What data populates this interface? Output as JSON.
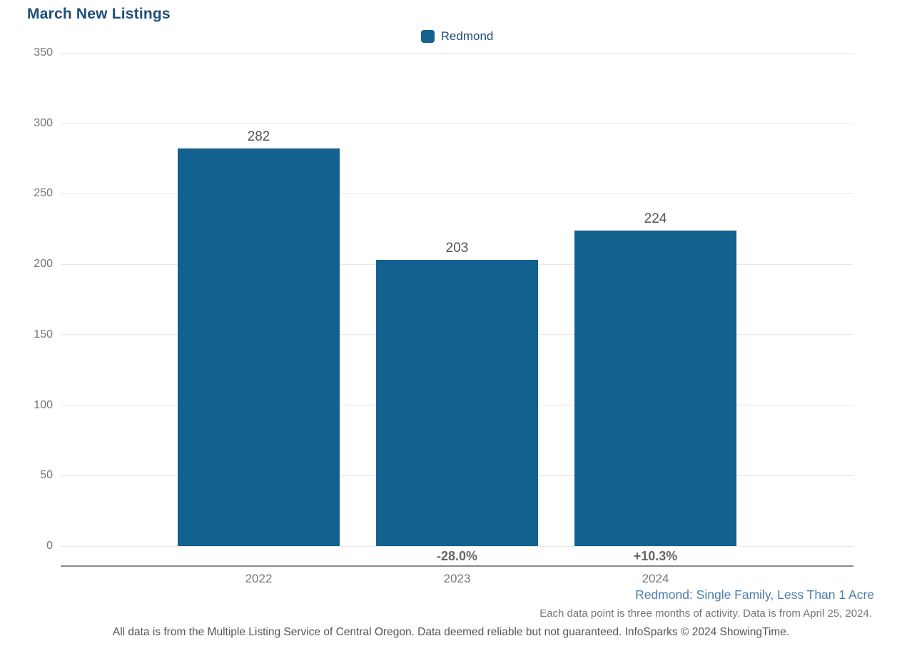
{
  "title": "March New Listings",
  "legend": {
    "label": "Redmond"
  },
  "chart_data": {
    "type": "bar",
    "title": "March New Listings",
    "categories": [
      "2022",
      "2023",
      "2024"
    ],
    "series": [
      {
        "name": "Redmond",
        "values": [
          282,
          203,
          224
        ]
      }
    ],
    "data_labels": [
      "282",
      "203",
      "224"
    ],
    "pct_change_labels": [
      "",
      "-28.0%",
      "+10.3%"
    ],
    "xlabel": "",
    "ylabel": "",
    "ylim": [
      0,
      350
    ],
    "yticks": [
      0,
      50,
      100,
      150,
      200,
      250,
      300,
      350
    ],
    "grid": true,
    "legend_position": "top-center",
    "bar_color": "#12618f"
  },
  "footer": {
    "filter_note": "Redmond: Single Family, Less Than 1 Acre",
    "data_note": "Each data point is three months of activity. Data is from April 25, 2024.",
    "disclaimer": "All data is from the Multiple Listing Service of Central Oregon. Data deemed reliable but not guaranteed. InfoSparks © 2024 ShowingTime."
  },
  "colors": {
    "bar": "#12618f",
    "title_text": "#1f4e79",
    "legend_text": "#1f4e79",
    "filter_note_text": "#4d7dad",
    "axis_text": "#757575",
    "gridline": "#e7e7e7",
    "axis_line": "#8a8a8a",
    "value_label_text": "#555555",
    "pct_label_text": "#666666"
  }
}
